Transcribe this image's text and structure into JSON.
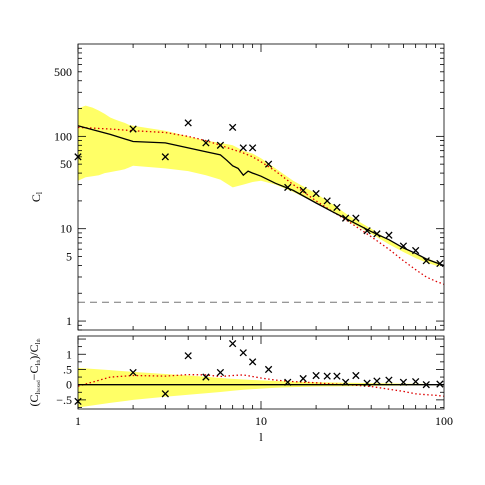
{
  "chart_data": [
    {
      "type": "line",
      "panel": "top",
      "xscale": "log",
      "yscale": "log",
      "xlim": [
        1,
        100
      ],
      "ylim": [
        0.8,
        1000
      ],
      "ylabel": "C",
      "ylabel_sub": "l",
      "y_ticks": [
        {
          "value": 1,
          "label": "1"
        },
        {
          "value": 5,
          "label": "5"
        },
        {
          "value": 10,
          "label": "10"
        },
        {
          "value": 50,
          "label": "50"
        },
        {
          "value": 100,
          "label": "100"
        },
        {
          "value": 500,
          "label": "500"
        }
      ],
      "grid": false,
      "colors": {
        "band": "#ffff66",
        "model": "#000000",
        "dotted": "#dd0000",
        "dashed": "#777777",
        "markers": "#000000"
      },
      "band": {
        "x": [
          1,
          1.1,
          1.2,
          1.3,
          1.4,
          1.5,
          1.6,
          1.7,
          1.8,
          1.9,
          2,
          3,
          4,
          5,
          6,
          7,
          8,
          9,
          10,
          12,
          15,
          20,
          25,
          30,
          40,
          50,
          60,
          70,
          80,
          90,
          95
        ],
        "upper": [
          200,
          215,
          205,
          190,
          175,
          160,
          152,
          145,
          140,
          133,
          130,
          115,
          100,
          90,
          85,
          80,
          70,
          65,
          58,
          45,
          33,
          24,
          18,
          14,
          10,
          7.5,
          6.2,
          5.3,
          4.8,
          4.4,
          4.3
        ],
        "lower": [
          33,
          36,
          37,
          38,
          40,
          41,
          42,
          43,
          44,
          46,
          48,
          45,
          42,
          38,
          34,
          28,
          30,
          32,
          33,
          30,
          25,
          19,
          15,
          12,
          8.8,
          6.8,
          5.6,
          4.8,
          4.3,
          4.0,
          3.9
        ]
      },
      "model": {
        "x": [
          1,
          1.5,
          2,
          3,
          4,
          5,
          6,
          6.5,
          7,
          7.5,
          8,
          8.5,
          9,
          10,
          12,
          15,
          20,
          25,
          30,
          40,
          50,
          60,
          70,
          80,
          90,
          100
        ],
        "y": [
          130,
          105,
          88,
          85,
          75,
          68,
          63,
          55,
          48,
          45,
          38,
          42,
          40,
          37,
          31,
          26,
          19,
          15,
          12.5,
          9.3,
          7.6,
          6.2,
          5.4,
          4.7,
          4.3,
          4.0
        ]
      },
      "dotted": {
        "x": [
          1,
          1.5,
          2,
          3,
          4,
          5,
          6,
          7,
          8,
          9,
          10,
          12,
          15,
          20,
          25,
          30,
          40,
          50,
          60,
          70,
          80,
          90,
          100
        ],
        "y": [
          125,
          120,
          115,
          110,
          100,
          90,
          80,
          72,
          66,
          60,
          53,
          42,
          30,
          20,
          15,
          12,
          8.2,
          6,
          4.5,
          3.6,
          3.0,
          2.7,
          2.5
        ]
      },
      "dashed": {
        "y": 1.6
      },
      "markers": {
        "x": [
          1,
          2,
          3,
          4,
          5,
          6,
          7,
          8,
          9,
          11,
          14,
          17,
          20,
          23,
          26,
          29,
          33,
          38,
          43,
          50,
          60,
          70,
          80,
          95
        ],
        "y": [
          60,
          120,
          60,
          140,
          85,
          80,
          125,
          75,
          75,
          50,
          28,
          26,
          24,
          20,
          17,
          13,
          13,
          9.5,
          8.8,
          8.5,
          6.5,
          5.8,
          4.5,
          4.2
        ]
      }
    },
    {
      "type": "line",
      "panel": "bottom",
      "xscale": "log",
      "xlim": [
        1,
        100
      ],
      "ylim": [
        -0.8,
        1.6
      ],
      "xlabel": "l",
      "ylabel": "(C",
      "ylabel_sub1": "l",
      "ylabel_sub2": "boxed",
      "ylabel_mid": "−C",
      "ylabel_sub3": "l",
      "ylabel_sub4": "th",
      "ylabel_end": ")/C",
      "ylabel_sub5": "l",
      "ylabel_sub6": "th",
      "x_ticks": [
        {
          "value": 1,
          "label": "1"
        },
        {
          "value": 10,
          "label": "10"
        },
        {
          "value": 100,
          "label": "100"
        }
      ],
      "y_ticks": [
        {
          "value": -0.5,
          "label": "−.5"
        },
        {
          "value": 0,
          "label": "0"
        },
        {
          "value": 0.5,
          "label": ".5"
        },
        {
          "value": 1,
          "label": "1"
        }
      ],
      "grid": false,
      "band": {
        "x": [
          1,
          1.5,
          2,
          3,
          4,
          5,
          6,
          7,
          8,
          10,
          12,
          15,
          20,
          30,
          40,
          50,
          60,
          70,
          80,
          90,
          100
        ],
        "upper": [
          0.55,
          0.48,
          0.42,
          0.35,
          0.3,
          0.26,
          0.22,
          0.19,
          0.17,
          0.14,
          0.12,
          0.1,
          0.08,
          0.06,
          0.05,
          0.04,
          0.035,
          0.03,
          0.025,
          0.02,
          0.02
        ],
        "lower": [
          -0.75,
          -0.6,
          -0.5,
          -0.4,
          -0.33,
          -0.28,
          -0.24,
          -0.2,
          -0.17,
          -0.13,
          -0.1,
          -0.08,
          -0.06,
          -0.05,
          -0.04,
          -0.035,
          -0.03,
          -0.025,
          -0.02,
          -0.02,
          -0.02
        ]
      },
      "model": {
        "x": [
          1,
          100
        ],
        "y": [
          0,
          0
        ]
      },
      "dotted": {
        "x": [
          1,
          1.5,
          2,
          3,
          4,
          5,
          6,
          7,
          8,
          10,
          12,
          15,
          20,
          25,
          30,
          40,
          50,
          60,
          70,
          80,
          90,
          100
        ],
        "y": [
          -0.05,
          0.25,
          0.3,
          0.28,
          0.33,
          0.32,
          0.27,
          0.3,
          0.32,
          0.22,
          0.15,
          0.1,
          0.06,
          0.02,
          0.0,
          -0.06,
          -0.15,
          -0.22,
          -0.3,
          -0.33,
          -0.35,
          -0.38
        ]
      },
      "markers": {
        "x": [
          1,
          2,
          3,
          4,
          5,
          6,
          7,
          8,
          9,
          11,
          14,
          17,
          20,
          23,
          26,
          29,
          33,
          38,
          43,
          50,
          60,
          70,
          80,
          95
        ],
        "y": [
          -0.55,
          0.4,
          -0.3,
          0.95,
          0.25,
          0.4,
          1.35,
          1.05,
          0.75,
          0.5,
          0.08,
          0.2,
          0.3,
          0.28,
          0.28,
          0.08,
          0.3,
          0.05,
          0.12,
          0.15,
          0.08,
          0.1,
          0.0,
          0.02
        ]
      }
    }
  ]
}
